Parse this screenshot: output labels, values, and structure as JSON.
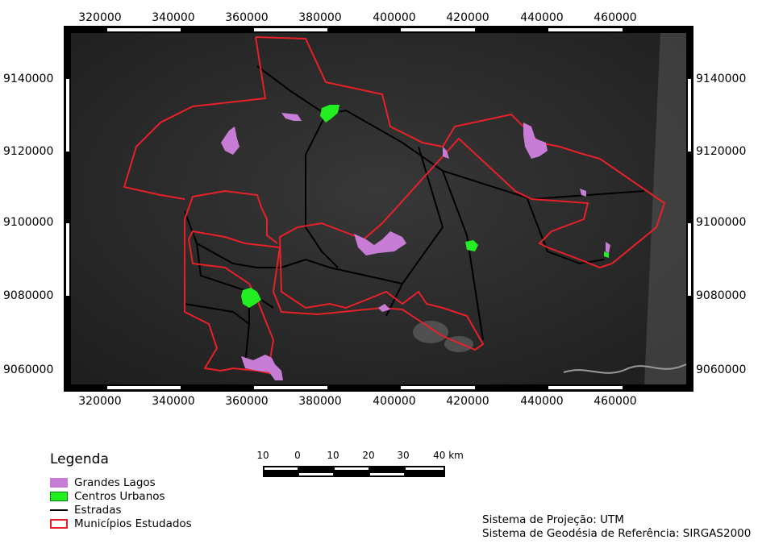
{
  "map": {
    "x_ticks": [
      "320000",
      "340000",
      "360000",
      "380000",
      "400000",
      "420000",
      "440000",
      "460000"
    ],
    "y_ticks": [
      "9140000",
      "9120000",
      "9100000",
      "9080000",
      "9060000"
    ],
    "colors": {
      "lakes": "#c77dd6",
      "urban": "#22ee22",
      "roads": "#000000",
      "municipalities": "#e8202a",
      "background": "#2a2a2a"
    }
  },
  "legend": {
    "title": "Legenda",
    "items": [
      {
        "label": "Grandes Lagos",
        "symbol": "fill-purple"
      },
      {
        "label": "Centros Urbanos",
        "symbol": "fill-green"
      },
      {
        "label": "Estradas",
        "symbol": "line-black"
      },
      {
        "label": "Municípios Estudados",
        "symbol": "outline-red"
      }
    ]
  },
  "scalebar": {
    "labels": [
      "10",
      "0",
      "10",
      "20",
      "30",
      "40 km"
    ]
  },
  "projection": {
    "line1": "Sistema de Projeção: UTM",
    "line2": "Sistema de Geodésia de Referência: SIRGAS2000"
  }
}
